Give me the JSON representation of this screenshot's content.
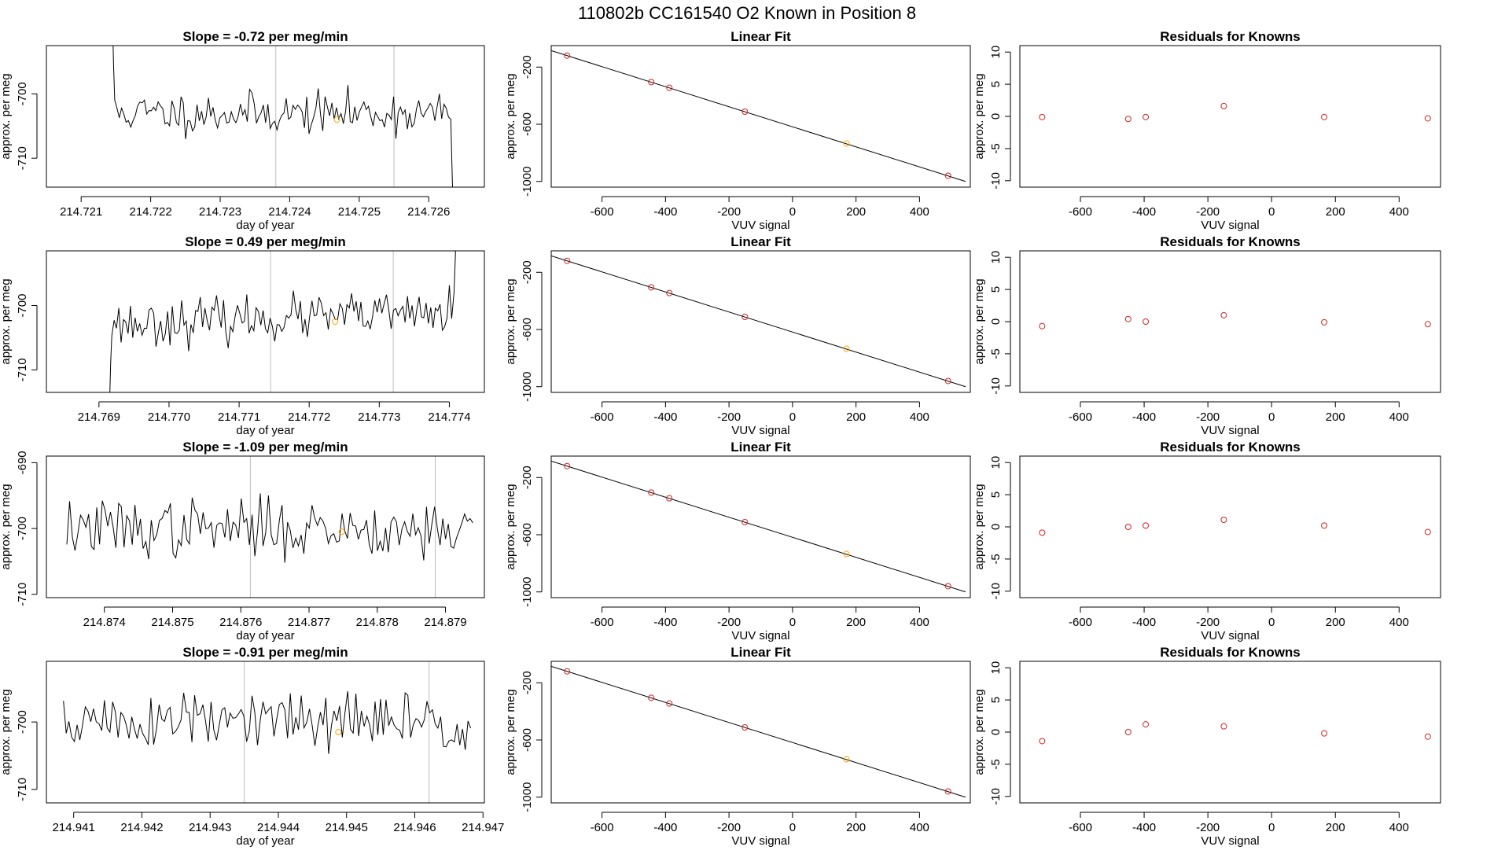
{
  "title": "110802b     CC161540    O2 Known in Position  8",
  "colors": {
    "trace": "#000000",
    "known": "#ffa500",
    "ref": "#cd2626",
    "vline": "#bebebe",
    "fitline": "#000000",
    "axis": "#000000"
  },
  "chart_data": [
    {
      "type": "line",
      "row": 0,
      "title": "Slope =  -0.72  per meg/min",
      "xlabel": "day of year",
      "ylabel": "approx. per meg",
      "xlim": [
        214.7205,
        214.7268
      ],
      "ylim": [
        -714.5,
        -692.5
      ],
      "xticks": [
        214.721,
        214.722,
        214.723,
        214.724,
        214.725,
        214.726
      ],
      "xtick_labels": [
        "214.721",
        "214.722",
        "214.723",
        "214.724",
        "214.725",
        "214.726"
      ],
      "yticks": [
        -700,
        -710
      ],
      "ytick_labels": [
        "-700",
        "-710"
      ],
      "series_start": 214.72145,
      "series_end": 214.72635,
      "series_mean": -703,
      "series_sd": 1.6,
      "series_seed": 11,
      "start_y": -688,
      "end_y": -718,
      "vlines": [
        214.7238,
        214.7255
      ],
      "known_point": {
        "x": 214.72468,
        "y": -704
      }
    },
    {
      "type": "scatter",
      "row": 0,
      "title": "Linear Fit",
      "xlabel": "VUV signal",
      "ylabel": "approx. per meg",
      "xlim": [
        -760,
        560
      ],
      "ylim": [
        -1040,
        -50
      ],
      "xticks": [
        -600,
        -400,
        -200,
        0,
        200,
        400
      ],
      "xtick_labels": [
        "-600",
        "-400",
        "-200",
        "0",
        "200",
        "400"
      ],
      "yticks": [
        -200,
        -600,
        -1000
      ],
      "ytick_labels": [
        "-200",
        "-600",
        "-1000"
      ],
      "line": {
        "x": [
          -760,
          545
        ],
        "y": [
          -85,
          -1000
        ]
      },
      "points": [
        {
          "x": -710,
          "y": -120,
          "kind": "ref"
        },
        {
          "x": -445,
          "y": -305,
          "kind": "ref"
        },
        {
          "x": -388,
          "y": -345,
          "kind": "ref"
        },
        {
          "x": -150,
          "y": -512,
          "kind": "ref"
        },
        {
          "x": 170,
          "y": -735,
          "kind": "known"
        },
        {
          "x": 490,
          "y": -960,
          "kind": "ref"
        }
      ]
    },
    {
      "type": "scatter",
      "row": 0,
      "title": "Residuals for Knowns",
      "xlabel": "VUV signal",
      "ylabel": "approx. per meg",
      "xlim": [
        -790,
        530
      ],
      "ylim": [
        -11,
        11
      ],
      "xticks": [
        -600,
        -400,
        -200,
        0,
        200,
        400
      ],
      "xtick_labels": [
        "-600",
        "-400",
        "-200",
        "0",
        "200",
        "400"
      ],
      "yticks": [
        -10,
        -5,
        0,
        5,
        10
      ],
      "ytick_labels": [
        "-10",
        "-5",
        "0",
        "5",
        "10"
      ],
      "points": [
        {
          "x": -720,
          "y": -0.1,
          "kind": "ref"
        },
        {
          "x": -450,
          "y": -0.4,
          "kind": "ref"
        },
        {
          "x": -395,
          "y": -0.1,
          "kind": "ref"
        },
        {
          "x": -150,
          "y": 1.6,
          "kind": "ref"
        },
        {
          "x": 165,
          "y": -0.1,
          "kind": "ref"
        },
        {
          "x": 490,
          "y": -0.3,
          "kind": "ref"
        }
      ]
    },
    {
      "type": "line",
      "row": 1,
      "title": "Slope =  0.49  per meg/min",
      "xlabel": "day of year",
      "ylabel": "approx. per meg",
      "xlim": [
        214.76825,
        214.7745
      ],
      "ylim": [
        -713.5,
        -691.5
      ],
      "xticks": [
        214.769,
        214.77,
        214.771,
        214.772,
        214.773,
        214.774
      ],
      "xtick_labels": [
        "214.769",
        "214.770",
        "214.771",
        "214.772",
        "214.773",
        "214.774"
      ],
      "yticks": [
        -700,
        -710
      ],
      "ytick_labels": [
        "-700",
        "-710"
      ],
      "series_start": 214.76915,
      "series_end": 214.7741,
      "series_mean": -702,
      "series_sd": 1.7,
      "series_trend": 0.9,
      "series_seed": 23,
      "start_y": -716,
      "end_y": -688,
      "vlines": [
        214.77145,
        214.7732
      ],
      "known_point": {
        "x": 214.77237,
        "y": -702.5
      }
    },
    {
      "type": "scatter",
      "row": 1,
      "title": "Linear Fit",
      "xlabel": "VUV signal",
      "ylabel": "approx. per meg",
      "xlim": [
        -760,
        560
      ],
      "ylim": [
        -1040,
        -50
      ],
      "xticks": [
        -600,
        -400,
        -200,
        0,
        200,
        400
      ],
      "xtick_labels": [
        "-600",
        "-400",
        "-200",
        "0",
        "200",
        "400"
      ],
      "yticks": [
        -200,
        -600,
        -1000
      ],
      "ytick_labels": [
        "-200",
        "-600",
        "-1000"
      ],
      "line": {
        "x": [
          -760,
          545
        ],
        "y": [
          -85,
          -1000
        ]
      },
      "points": [
        {
          "x": -710,
          "y": -120,
          "kind": "ref"
        },
        {
          "x": -445,
          "y": -305,
          "kind": "ref"
        },
        {
          "x": -388,
          "y": -345,
          "kind": "ref"
        },
        {
          "x": -150,
          "y": -512,
          "kind": "ref"
        },
        {
          "x": 170,
          "y": -735,
          "kind": "known"
        },
        {
          "x": 490,
          "y": -960,
          "kind": "ref"
        }
      ]
    },
    {
      "type": "scatter",
      "row": 1,
      "title": "Residuals for Knowns",
      "xlabel": "VUV signal",
      "ylabel": "approx. per meg",
      "xlim": [
        -790,
        530
      ],
      "ylim": [
        -11,
        11
      ],
      "xticks": [
        -600,
        -400,
        -200,
        0,
        200,
        400
      ],
      "xtick_labels": [
        "-600",
        "-400",
        "-200",
        "0",
        "200",
        "400"
      ],
      "yticks": [
        -10,
        -5,
        0,
        5,
        10
      ],
      "ytick_labels": [
        "-10",
        "-5",
        "0",
        "5",
        "10"
      ],
      "points": [
        {
          "x": -720,
          "y": -0.7,
          "kind": "ref"
        },
        {
          "x": -450,
          "y": 0.4,
          "kind": "ref"
        },
        {
          "x": -395,
          "y": 0.0,
          "kind": "ref"
        },
        {
          "x": -150,
          "y": 1.0,
          "kind": "ref"
        },
        {
          "x": 165,
          "y": -0.1,
          "kind": "ref"
        },
        {
          "x": 490,
          "y": -0.4,
          "kind": "ref"
        }
      ]
    },
    {
      "type": "line",
      "row": 2,
      "title": "Slope =  -1.09  per meg/min",
      "xlabel": "day of year",
      "ylabel": "approx. per meg",
      "xlim": [
        214.87315,
        214.87957
      ],
      "ylim": [
        -710.5,
        -689
      ],
      "xticks": [
        214.874,
        214.875,
        214.876,
        214.877,
        214.878,
        214.879
      ],
      "xtick_labels": [
        "214.874",
        "214.875",
        "214.876",
        "214.877",
        "214.878",
        "214.879"
      ],
      "yticks": [
        -690,
        -700,
        -710
      ],
      "ytick_labels": [
        "-690",
        "-700",
        "-710"
      ],
      "series_start": 214.87345,
      "series_end": 214.8794,
      "series_mean": -700,
      "series_sd": 2.2,
      "series_seed": 37,
      "vlines": [
        214.87614,
        214.87885
      ],
      "known_point": {
        "x": 214.87748,
        "y": -700.5
      }
    },
    {
      "type": "scatter",
      "row": 2,
      "title": "Linear Fit",
      "xlabel": "VUV signal",
      "ylabel": "approx. per meg",
      "xlim": [
        -760,
        560
      ],
      "ylim": [
        -1040,
        -50
      ],
      "xticks": [
        -600,
        -400,
        -200,
        0,
        200,
        400
      ],
      "xtick_labels": [
        "-600",
        "-400",
        "-200",
        "0",
        "200",
        "400"
      ],
      "yticks": [
        -200,
        -600,
        -1000
      ],
      "ytick_labels": [
        "-200",
        "-600",
        "-1000"
      ],
      "line": {
        "x": [
          -760,
          545
        ],
        "y": [
          -85,
          -1000
        ]
      },
      "points": [
        {
          "x": -710,
          "y": -120,
          "kind": "ref"
        },
        {
          "x": -445,
          "y": -305,
          "kind": "ref"
        },
        {
          "x": -388,
          "y": -345,
          "kind": "ref"
        },
        {
          "x": -150,
          "y": -512,
          "kind": "ref"
        },
        {
          "x": 170,
          "y": -735,
          "kind": "known"
        },
        {
          "x": 490,
          "y": -960,
          "kind": "ref"
        }
      ]
    },
    {
      "type": "scatter",
      "row": 2,
      "title": "Residuals for Knowns",
      "xlabel": "VUV signal",
      "ylabel": "approx. per meg",
      "xlim": [
        -790,
        530
      ],
      "ylim": [
        -11,
        11
      ],
      "xticks": [
        -600,
        -400,
        -200,
        0,
        200,
        400
      ],
      "xtick_labels": [
        "-600",
        "-400",
        "-200",
        "0",
        "200",
        "400"
      ],
      "yticks": [
        -10,
        -5,
        0,
        5,
        10
      ],
      "ytick_labels": [
        "-10",
        "-5",
        "0",
        "5",
        "10"
      ],
      "points": [
        {
          "x": -720,
          "y": -0.9,
          "kind": "ref"
        },
        {
          "x": -450,
          "y": 0.0,
          "kind": "ref"
        },
        {
          "x": -395,
          "y": 0.2,
          "kind": "ref"
        },
        {
          "x": -150,
          "y": 1.1,
          "kind": "ref"
        },
        {
          "x": 165,
          "y": 0.2,
          "kind": "ref"
        },
        {
          "x": 490,
          "y": -0.8,
          "kind": "ref"
        }
      ]
    },
    {
      "type": "line",
      "row": 3,
      "title": "Slope =  -0.91  per meg/min",
      "xlabel": "day of year",
      "ylabel": "approx. per meg",
      "xlim": [
        214.9406,
        214.94702
      ],
      "ylim": [
        -712,
        -691
      ],
      "xticks": [
        214.941,
        214.942,
        214.943,
        214.944,
        214.945,
        214.946,
        214.947
      ],
      "xtick_labels": [
        "214.941",
        "214.942",
        "214.943",
        "214.944",
        "214.945",
        "214.946",
        "214.947"
      ],
      "yticks": [
        -700,
        -710
      ],
      "ytick_labels": [
        "-700",
        "-710"
      ],
      "series_start": 214.94085,
      "series_end": 214.94682,
      "series_mean": -700,
      "series_sd": 2.3,
      "series_seed": 51,
      "vlines": [
        214.9435,
        214.94621
      ],
      "known_point": {
        "x": 214.94488,
        "y": -701.5
      }
    },
    {
      "type": "scatter",
      "row": 3,
      "title": "Linear Fit",
      "xlabel": "VUV signal",
      "ylabel": "approx. per meg",
      "xlim": [
        -760,
        560
      ],
      "ylim": [
        -1040,
        -50
      ],
      "xticks": [
        -600,
        -400,
        -200,
        0,
        200,
        400
      ],
      "xtick_labels": [
        "-600",
        "-400",
        "-200",
        "0",
        "200",
        "400"
      ],
      "yticks": [
        -200,
        -600,
        -1000
      ],
      "ytick_labels": [
        "-200",
        "-600",
        "-1000"
      ],
      "line": {
        "x": [
          -760,
          545
        ],
        "y": [
          -85,
          -1000
        ]
      },
      "points": [
        {
          "x": -710,
          "y": -120,
          "kind": "ref"
        },
        {
          "x": -445,
          "y": -305,
          "kind": "ref"
        },
        {
          "x": -388,
          "y": -345,
          "kind": "ref"
        },
        {
          "x": -150,
          "y": -512,
          "kind": "ref"
        },
        {
          "x": 170,
          "y": -735,
          "kind": "known"
        },
        {
          "x": 490,
          "y": -960,
          "kind": "ref"
        }
      ]
    },
    {
      "type": "scatter",
      "row": 3,
      "title": "Residuals for Knowns",
      "xlabel": "VUV signal",
      "ylabel": "approx. per meg",
      "xlim": [
        -790,
        530
      ],
      "ylim": [
        -11,
        11
      ],
      "xticks": [
        -600,
        -400,
        -200,
        0,
        200,
        400
      ],
      "xtick_labels": [
        "-600",
        "-400",
        "-200",
        "0",
        "200",
        "400"
      ],
      "yticks": [
        -10,
        -5,
        0,
        5,
        10
      ],
      "ytick_labels": [
        "-10",
        "-5",
        "0",
        "5",
        "10"
      ],
      "points": [
        {
          "x": -720,
          "y": -1.4,
          "kind": "ref"
        },
        {
          "x": -450,
          "y": 0.0,
          "kind": "ref"
        },
        {
          "x": -395,
          "y": 1.2,
          "kind": "ref"
        },
        {
          "x": -150,
          "y": 0.9,
          "kind": "ref"
        },
        {
          "x": 165,
          "y": -0.2,
          "kind": "ref"
        },
        {
          "x": 490,
          "y": -0.7,
          "kind": "ref"
        }
      ]
    }
  ]
}
